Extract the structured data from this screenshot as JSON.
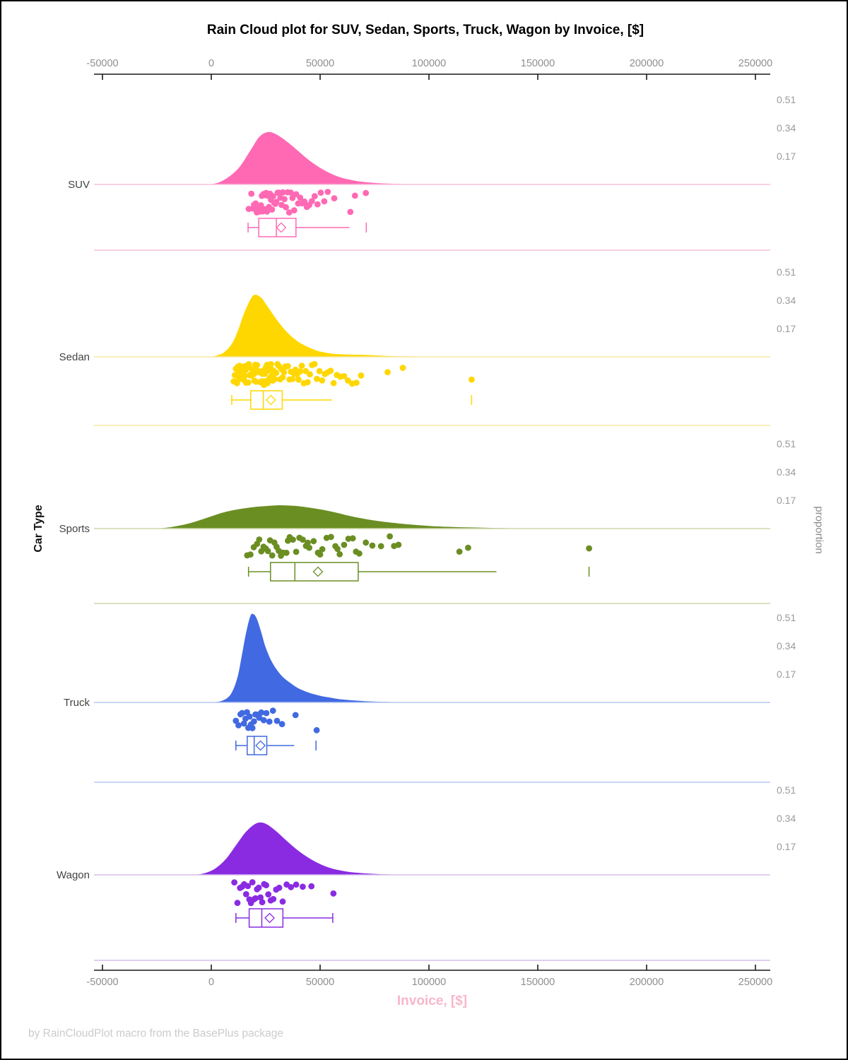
{
  "title": "Rain Cloud plot for SUV, Sedan, Sports, Truck, Wagon by Invoice, [$]",
  "footer": "by RainCloudPlot macro from the BasePlus package",
  "x_axis": {
    "label": "Invoice, [$]",
    "tick_values": [
      -50000,
      0,
      50000,
      100000,
      150000,
      200000,
      250000
    ],
    "tick_labels": [
      "-50000",
      "0",
      "50000",
      "100000",
      "150000",
      "200000",
      "250000"
    ]
  },
  "y_axis_left": {
    "label": "Car Type"
  },
  "y_axis_right": {
    "label": "proportion",
    "tick_labels": [
      "0.51",
      "0.34",
      "0.17"
    ]
  },
  "colors": {
    "axis_line": "#1a1a1a",
    "axis_tick_text": "#8f8f8f",
    "proportion_tick_text": "#9a9a9a",
    "category_label_text": "#434343",
    "x_label_pink": "#f8b7ca",
    "footer_gray": "#cbcbcb"
  },
  "chart_data": {
    "type": "raincloud",
    "x_field": "Invoice [$]",
    "group_field": "Car Type",
    "proportion_ticks": [
      0.51,
      0.34,
      0.17
    ],
    "categories": [
      {
        "label": "SUV",
        "color": "#FF69B4",
        "light_color": "#f9c2dc",
        "density": [
          [
            -2000,
            0
          ],
          [
            3000,
            0.01
          ],
          [
            8000,
            0.045
          ],
          [
            13000,
            0.105
          ],
          [
            18000,
            0.205
          ],
          [
            22000,
            0.285
          ],
          [
            26000,
            0.315
          ],
          [
            30000,
            0.3
          ],
          [
            35000,
            0.255
          ],
          [
            40000,
            0.2
          ],
          [
            45000,
            0.145
          ],
          [
            50000,
            0.1
          ],
          [
            55000,
            0.065
          ],
          [
            60000,
            0.04
          ],
          [
            65000,
            0.025
          ],
          [
            70000,
            0.015
          ],
          [
            78000,
            0.007
          ],
          [
            86000,
            0.003
          ],
          [
            95000,
            0
          ]
        ],
        "points": [
          17200,
          18400,
          19100,
          19600,
          20100,
          20400,
          20900,
          21300,
          21700,
          22100,
          22400,
          22800,
          23200,
          23600,
          24000,
          24400,
          24800,
          25200,
          25600,
          26000,
          26500,
          27000,
          27400,
          27900,
          28400,
          28900,
          29400,
          29900,
          30500,
          31100,
          31700,
          32300,
          32900,
          33600,
          34300,
          35000,
          35800,
          36500,
          37300,
          38100,
          39000,
          39900,
          40800,
          41800,
          42800,
          43900,
          45000,
          46200,
          47500,
          48800,
          50300,
          51900,
          53500,
          56500,
          63900,
          66000,
          71000
        ],
        "box": {
          "whisker_low": 16900,
          "q1": 21800,
          "median": 29900,
          "q3": 38900,
          "mean": 32100,
          "whisker_high": 63500,
          "high_cap": false,
          "outliers": [
            71200
          ]
        }
      },
      {
        "label": "Sedan",
        "color": "#FFD700",
        "light_color": "#f5e8a3",
        "density": [
          [
            0,
            0
          ],
          [
            5000,
            0.02
          ],
          [
            9000,
            0.07
          ],
          [
            12000,
            0.15
          ],
          [
            15000,
            0.26
          ],
          [
            18000,
            0.345
          ],
          [
            20000,
            0.374
          ],
          [
            23000,
            0.355
          ],
          [
            26000,
            0.3
          ],
          [
            30000,
            0.225
          ],
          [
            34000,
            0.16
          ],
          [
            38000,
            0.11
          ],
          [
            42000,
            0.075
          ],
          [
            46000,
            0.05
          ],
          [
            50000,
            0.032
          ],
          [
            55000,
            0.02
          ],
          [
            60000,
            0.015
          ],
          [
            65000,
            0.013
          ],
          [
            70000,
            0.012
          ],
          [
            75000,
            0.009
          ],
          [
            80000,
            0.006
          ],
          [
            90000,
            0.003
          ],
          [
            100000,
            0.001
          ],
          [
            110000,
            0
          ]
        ],
        "points": [
          10300,
          10800,
          11300,
          11800,
          12200,
          12600,
          13000,
          13400,
          13800,
          14200,
          14600,
          15000,
          15400,
          15800,
          16200,
          16600,
          17000,
          17400,
          17800,
          18200,
          18600,
          19000,
          19400,
          19800,
          20200,
          20600,
          21000,
          21400,
          21800,
          22200,
          22600,
          23000,
          23400,
          23800,
          24200,
          24600,
          25000,
          25400,
          25800,
          26200,
          26600,
          27000,
          27400,
          27800,
          28200,
          12400,
          13600,
          14800,
          16000,
          17200,
          18400,
          19600,
          20800,
          22000,
          23200,
          24400,
          25600,
          26800,
          28000,
          28600,
          29200,
          29800,
          30400,
          31000,
          31600,
          32200,
          32800,
          33400,
          34000,
          34600,
          35200,
          35900,
          36600,
          37300,
          38000,
          38700,
          39400,
          40100,
          40800,
          41600,
          42500,
          43400,
          44300,
          45300,
          46300,
          47400,
          48500,
          49700,
          50900,
          52200,
          53500,
          54800,
          56200,
          57700,
          59300,
          61000,
          62800,
          64700,
          66700,
          68800,
          81000,
          88000,
          119600
        ],
        "box": {
          "whisker_low": 9400,
          "q1": 18100,
          "median": 23900,
          "q3": 32600,
          "mean": 27400,
          "whisker_high": 55500,
          "high_cap": false,
          "outliers": [
            119600
          ]
        }
      },
      {
        "label": "Sports",
        "color": "#6B8E23",
        "light_color": "#cdd9ab",
        "density": [
          [
            -25000,
            0
          ],
          [
            -18000,
            0.01
          ],
          [
            -10000,
            0.032
          ],
          [
            -2000,
            0.065
          ],
          [
            5000,
            0.095
          ],
          [
            12000,
            0.115
          ],
          [
            20000,
            0.13
          ],
          [
            28000,
            0.138
          ],
          [
            33000,
            0.14
          ],
          [
            40000,
            0.135
          ],
          [
            48000,
            0.12
          ],
          [
            56000,
            0.1
          ],
          [
            64000,
            0.075
          ],
          [
            72000,
            0.055
          ],
          [
            80000,
            0.04
          ],
          [
            90000,
            0.026
          ],
          [
            100000,
            0.016
          ],
          [
            110000,
            0.01
          ],
          [
            120000,
            0.007
          ],
          [
            130000,
            0.004
          ],
          [
            140000,
            0.002
          ],
          [
            155000,
            0
          ]
        ],
        "points": [
          16500,
          18000,
          19500,
          21000,
          22000,
          23000,
          24000,
          25000,
          26000,
          27000,
          28000,
          29000,
          30000,
          31000,
          32000,
          33000,
          34500,
          35200,
          36000,
          37500,
          39000,
          40500,
          42000,
          43500,
          45000,
          47000,
          49000,
          50000,
          51000,
          53000,
          55000,
          57000,
          59000,
          61000,
          63000,
          65000,
          66500,
          68000,
          71000,
          74000,
          78000,
          82000,
          86000,
          44300,
          58000,
          84000,
          114000,
          118000,
          173560
        ],
        "box": {
          "whisker_low": 17100,
          "q1": 27200,
          "median": 38400,
          "q3": 67500,
          "mean": 49000,
          "whisker_high": 131000,
          "high_cap": false,
          "outliers": [
            173560
          ]
        }
      },
      {
        "label": "Truck",
        "color": "#4169E1",
        "light_color": "#b5c8ef",
        "density": [
          [
            0,
            0
          ],
          [
            5000,
            0.01
          ],
          [
            9000,
            0.05
          ],
          [
            12000,
            0.15
          ],
          [
            14000,
            0.28
          ],
          [
            16000,
            0.42
          ],
          [
            18000,
            0.52
          ],
          [
            19500,
            0.53
          ],
          [
            21000,
            0.5
          ],
          [
            23000,
            0.42
          ],
          [
            25000,
            0.33
          ],
          [
            28000,
            0.24
          ],
          [
            32000,
            0.165
          ],
          [
            36000,
            0.12
          ],
          [
            40000,
            0.085
          ],
          [
            45000,
            0.058
          ],
          [
            50000,
            0.04
          ],
          [
            55000,
            0.028
          ],
          [
            60000,
            0.018
          ],
          [
            70000,
            0.008
          ],
          [
            80000,
            0.003
          ],
          [
            90000,
            0
          ]
        ],
        "points": [
          11300,
          12500,
          13400,
          14200,
          15000,
          15700,
          16400,
          17000,
          17600,
          18200,
          18900,
          19600,
          20300,
          21100,
          22000,
          23000,
          24100,
          25300,
          26700,
          28300,
          30200,
          32500,
          38700,
          48400
        ],
        "box": {
          "whisker_low": 11300,
          "q1": 16500,
          "median": 19700,
          "q3": 25500,
          "mean": 22600,
          "whisker_high": 38100,
          "high_cap": false,
          "outliers": [
            48100
          ]
        }
      },
      {
        "label": "Wagon",
        "color": "#8A2BE2",
        "light_color": "#d5bdee",
        "density": [
          [
            -8000,
            0
          ],
          [
            -3000,
            0.01
          ],
          [
            2000,
            0.04
          ],
          [
            7000,
            0.1
          ],
          [
            12000,
            0.19
          ],
          [
            16000,
            0.26
          ],
          [
            20000,
            0.305
          ],
          [
            23000,
            0.315
          ],
          [
            26000,
            0.3
          ],
          [
            30000,
            0.26
          ],
          [
            35000,
            0.2
          ],
          [
            40000,
            0.145
          ],
          [
            45000,
            0.1
          ],
          [
            50000,
            0.065
          ],
          [
            55000,
            0.04
          ],
          [
            60000,
            0.025
          ],
          [
            65000,
            0.015
          ],
          [
            72000,
            0.008
          ],
          [
            80000,
            0.003
          ],
          [
            90000,
            0
          ]
        ],
        "points": [
          10600,
          12000,
          13200,
          14200,
          15100,
          16000,
          16800,
          17500,
          18200,
          18900,
          19600,
          20300,
          21000,
          21800,
          22600,
          23400,
          24300,
          25200,
          26200,
          27300,
          28500,
          29800,
          31200,
          32800,
          34600,
          36600,
          39000,
          42000,
          46000,
          56100
        ],
        "box": {
          "whisker_low": 11300,
          "q1": 17400,
          "median": 23200,
          "q3": 32900,
          "mean": 26800,
          "whisker_high": 55800,
          "high_cap": true,
          "outliers": []
        }
      }
    ]
  }
}
